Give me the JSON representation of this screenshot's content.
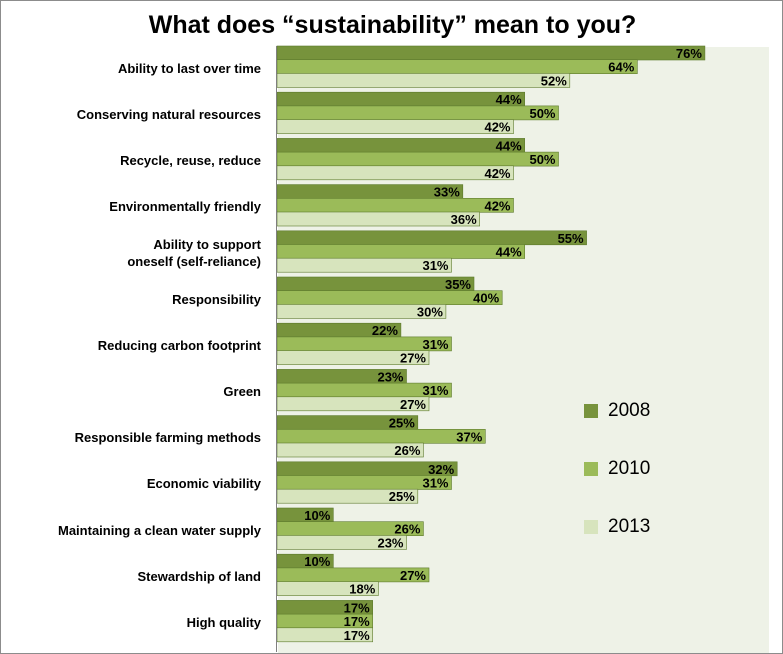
{
  "chart_data": {
    "type": "bar",
    "orientation": "horizontal",
    "title": "What does “sustainability” mean to you?",
    "categories": [
      "Ability to last over time",
      "Conserving natural resources",
      "Recycle, reuse, reduce",
      "Environmentally friendly",
      "Ability to support oneself (self-reliance)",
      "Responsibility",
      "Reducing carbon footprint",
      "Green",
      "Responsible farming methods",
      "Economic viability",
      "Maintaining a clean water supply",
      "Stewardship of land",
      "High quality"
    ],
    "category_lines": [
      [
        "Ability to last over time"
      ],
      [
        "Conserving natural resources"
      ],
      [
        "Recycle, reuse, reduce"
      ],
      [
        "Environmentally friendly"
      ],
      [
        "Ability to support",
        "oneself (self-reliance)"
      ],
      [
        "Responsibility"
      ],
      [
        "Reducing carbon footprint"
      ],
      [
        "Green"
      ],
      [
        "Responsible farming methods"
      ],
      [
        "Economic viability"
      ],
      [
        "Maintaining a clean water supply"
      ],
      [
        "Stewardship of land"
      ],
      [
        "High quality"
      ]
    ],
    "series": [
      {
        "name": "2008",
        "color": "#77933c",
        "values": [
          76,
          44,
          44,
          33,
          55,
          35,
          22,
          23,
          25,
          32,
          10,
          10,
          17
        ]
      },
      {
        "name": "2010",
        "color": "#9bbb59",
        "values": [
          64,
          50,
          50,
          42,
          44,
          40,
          31,
          31,
          37,
          31,
          26,
          27,
          17
        ]
      },
      {
        "name": "2013",
        "color": "#d7e4bd",
        "values": [
          52,
          42,
          42,
          36,
          31,
          30,
          27,
          27,
          26,
          25,
          23,
          18,
          17
        ]
      }
    ],
    "value_suffix": "%",
    "xlim": [
      0,
      100
    ],
    "legend_position": "right",
    "grid": false,
    "plot_background": "#eef2e7"
  }
}
